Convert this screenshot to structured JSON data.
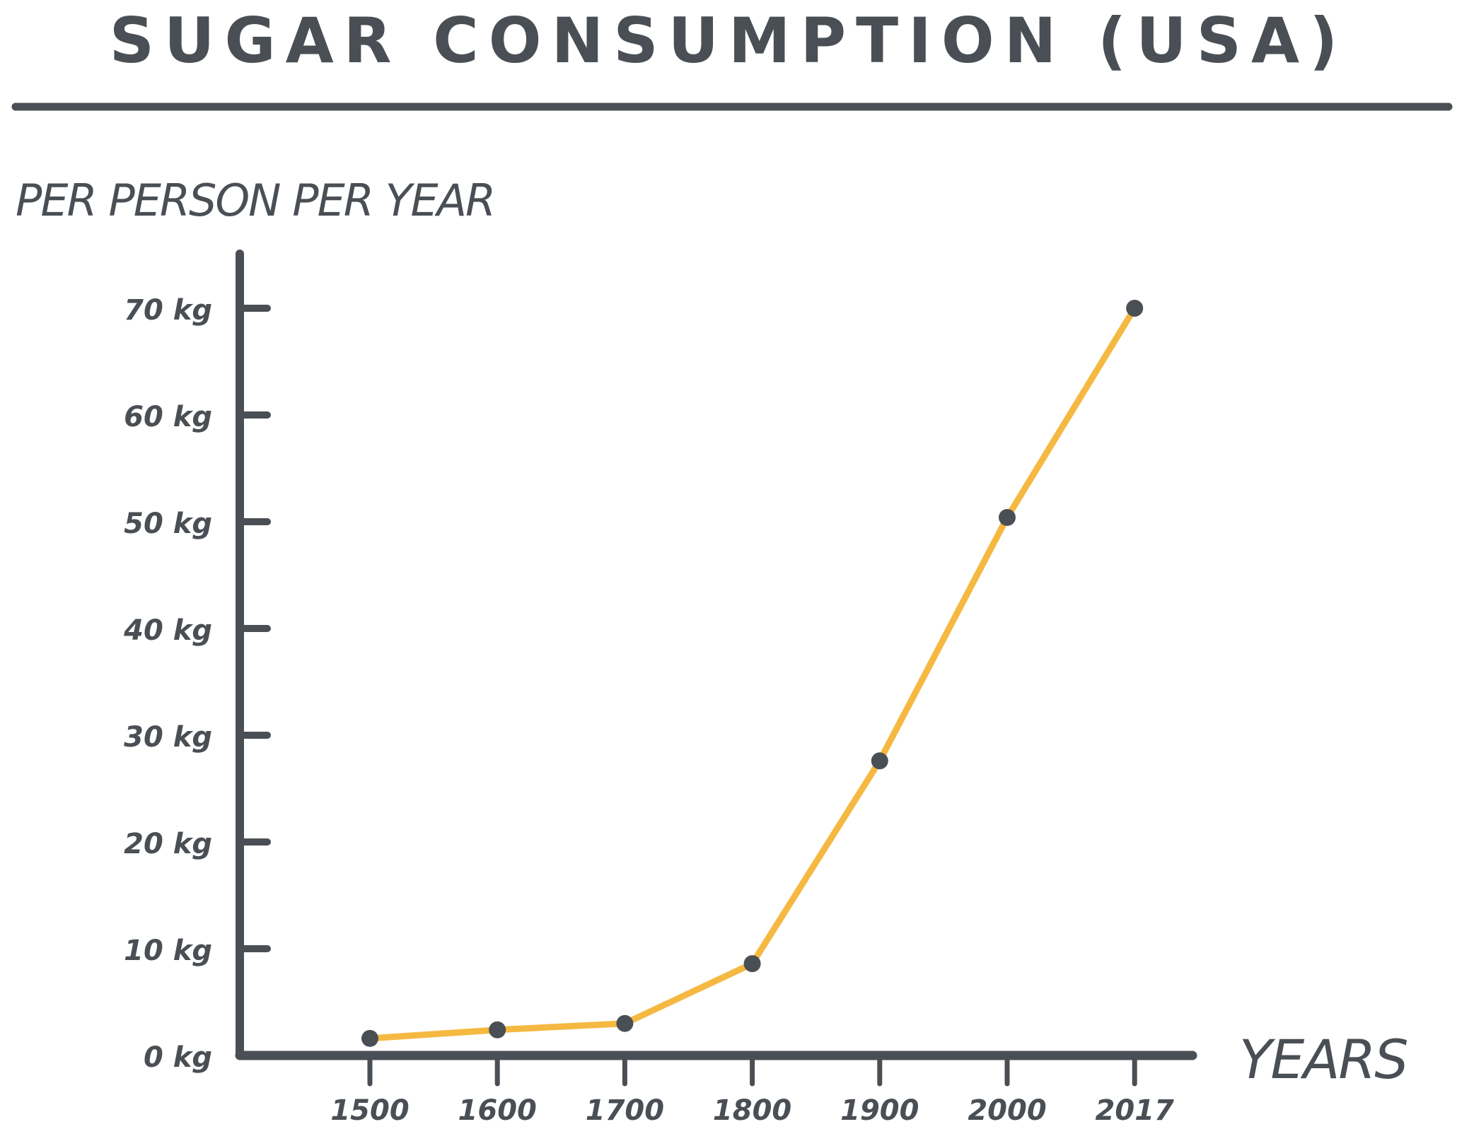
{
  "chart_data": {
    "type": "line",
    "title": "SUGAR CONSUMPTION (USA)",
    "ylabel": "PER PERSON PER YEAR",
    "xlabel": "YEARS",
    "categories": [
      "1500",
      "1600",
      "1700",
      "1800",
      "1900",
      "2000",
      "2017"
    ],
    "values": [
      1.6,
      2.4,
      3.0,
      8.6,
      27.6,
      50.4,
      70
    ],
    "yticks": [
      "0 kg",
      "10 kg",
      "20 kg",
      "30 kg",
      "40 kg",
      "50 kg",
      "60 kg",
      "70 kg"
    ],
    "ylim": [
      0,
      70
    ],
    "grid": false,
    "colors": {
      "line": "#f5b942",
      "axis": "#4a4f55",
      "marker": "#4a4f55"
    }
  }
}
